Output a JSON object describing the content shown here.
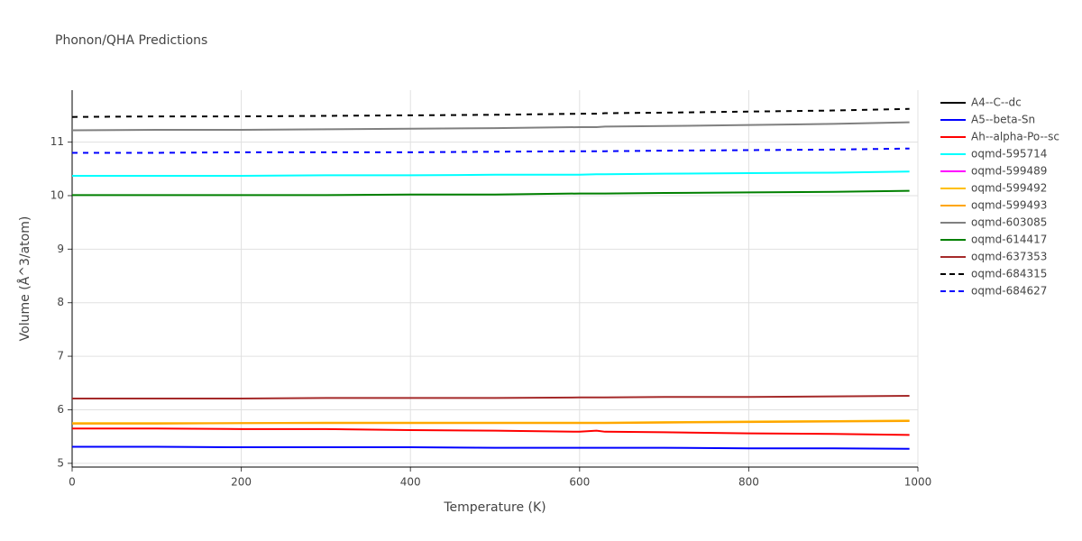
{
  "chart_data": {
    "type": "line",
    "title": "Phonon/QHA Predictions",
    "x_label": "Temperature (K)",
    "y_label": "Volume (Å^3/atom)",
    "x": [
      0,
      100,
      200,
      300,
      400,
      500,
      600,
      620,
      630,
      700,
      800,
      900,
      990
    ],
    "xlim": [
      0,
      1000
    ],
    "xticks": [
      0,
      200,
      400,
      600,
      800,
      1000
    ],
    "ylim": [
      4.93,
      11.97
    ],
    "yticks": [
      5,
      6,
      7,
      8,
      9,
      10,
      11
    ],
    "grid": true,
    "legend": "right",
    "series": [
      {
        "name": "A4--C--dc",
        "color": "#000000",
        "dash": false,
        "values": [
          null,
          null,
          null,
          null,
          null,
          null,
          null,
          null,
          null,
          null,
          null,
          null,
          null
        ]
      },
      {
        "name": "A5--beta-Sn",
        "color": "#0000ff",
        "dash": false,
        "values": [
          5.31,
          5.31,
          5.3,
          5.3,
          5.3,
          5.29,
          5.29,
          5.29,
          5.29,
          5.29,
          5.28,
          5.28,
          5.27
        ]
      },
      {
        "name": "Ah--alpha-Po--sc",
        "color": "#ff0000",
        "dash": false,
        "values": [
          5.65,
          5.65,
          5.64,
          5.64,
          5.62,
          5.61,
          5.59,
          5.61,
          5.59,
          5.58,
          5.56,
          5.55,
          5.53
        ]
      },
      {
        "name": "oqmd-595714",
        "color": "#00ffff",
        "dash": false,
        "values": [
          10.37,
          10.37,
          10.37,
          10.38,
          10.38,
          10.39,
          10.39,
          10.4,
          10.4,
          10.41,
          10.42,
          10.43,
          10.45
        ]
      },
      {
        "name": "oqmd-599489",
        "color": "#ff00ff",
        "dash": false,
        "values": [
          null,
          null,
          null,
          null,
          null,
          null,
          null,
          null,
          null,
          null,
          null,
          null,
          null
        ]
      },
      {
        "name": "oqmd-599492",
        "color": "#ffbf00",
        "dash": false,
        "values": [
          5.75,
          5.75,
          5.75,
          5.76,
          5.76,
          5.76,
          5.76,
          5.76,
          5.76,
          5.77,
          5.78,
          5.79,
          5.8
        ]
      },
      {
        "name": "oqmd-599493",
        "color": "#ffa500",
        "dash": false,
        "values": [
          5.74,
          5.74,
          5.75,
          5.75,
          5.75,
          5.75,
          5.75,
          5.75,
          5.75,
          5.76,
          5.77,
          5.78,
          5.79
        ]
      },
      {
        "name": "oqmd-603085",
        "color": "#808080",
        "dash": false,
        "values": [
          11.22,
          11.23,
          11.23,
          11.24,
          11.25,
          11.26,
          11.28,
          11.28,
          11.29,
          11.3,
          11.32,
          11.34,
          11.37
        ]
      },
      {
        "name": "oqmd-614417",
        "color": "#008000",
        "dash": false,
        "values": [
          10.01,
          10.01,
          10.01,
          10.01,
          10.02,
          10.02,
          10.04,
          10.04,
          10.04,
          10.05,
          10.06,
          10.07,
          10.09
        ]
      },
      {
        "name": "oqmd-637353",
        "color": "#a52a2a",
        "dash": false,
        "values": [
          6.21,
          6.21,
          6.21,
          6.22,
          6.22,
          6.22,
          6.23,
          6.23,
          6.23,
          6.24,
          6.24,
          6.25,
          6.26
        ]
      },
      {
        "name": "oqmd-684315",
        "color": "#000000",
        "dash": true,
        "values": [
          11.47,
          11.48,
          11.48,
          11.49,
          11.5,
          11.51,
          11.53,
          11.53,
          11.54,
          11.55,
          11.57,
          11.59,
          11.62
        ]
      },
      {
        "name": "oqmd-684627",
        "color": "#0000ff",
        "dash": true,
        "values": [
          10.8,
          10.8,
          10.81,
          10.81,
          10.81,
          10.82,
          10.83,
          10.83,
          10.83,
          10.84,
          10.85,
          10.86,
          10.88
        ]
      }
    ]
  }
}
